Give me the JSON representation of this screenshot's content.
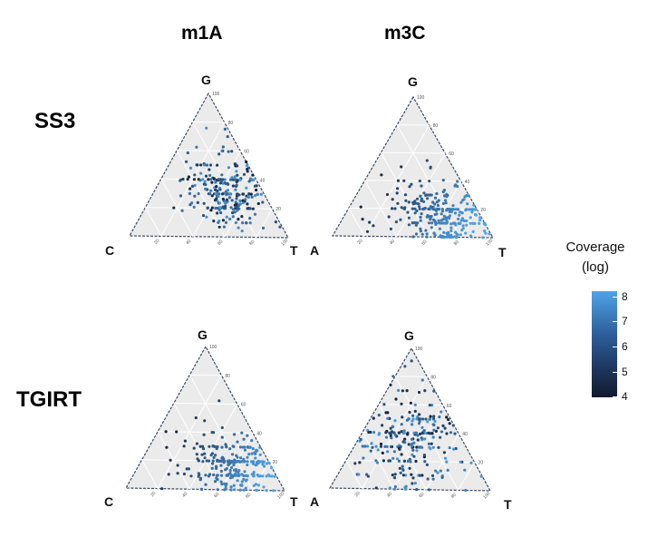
{
  "chart_data": {
    "type": "scatter",
    "subtype": "ternary",
    "columns": [
      "m1A",
      "m3C"
    ],
    "rows": [
      "SS3",
      "TGIRT"
    ],
    "panels": [
      {
        "row": "SS3",
        "col": "m1A",
        "vertices": {
          "top": "G",
          "left": "C",
          "right": "T"
        },
        "density_bias": "right-center",
        "seed": 11
      },
      {
        "row": "SS3",
        "col": "m3C",
        "vertices": {
          "top": "G",
          "left": "A",
          "right": "T"
        },
        "density_bias": "bottom-right",
        "seed": 23
      },
      {
        "row": "TGIRT",
        "col": "m1A",
        "vertices": {
          "top": "G",
          "left": "C",
          "right": "T"
        },
        "density_bias": "bottom-right",
        "seed": 37
      },
      {
        "row": "TGIRT",
        "col": "m3C",
        "vertices": {
          "top": "G",
          "left": "A",
          "right": "T"
        },
        "density_bias": "uniform",
        "seed": 51
      }
    ],
    "axis_ticks": [
      "20",
      "40",
      "60",
      "80",
      "100"
    ],
    "legend": {
      "title_line1": "Coverage",
      "title_line2": "(log)",
      "ticks": [
        "8",
        "7",
        "6",
        "5",
        "4"
      ],
      "range": [
        4,
        8.3
      ],
      "color_low": "#111a2e",
      "color_high": "#4fa3e8"
    }
  }
}
